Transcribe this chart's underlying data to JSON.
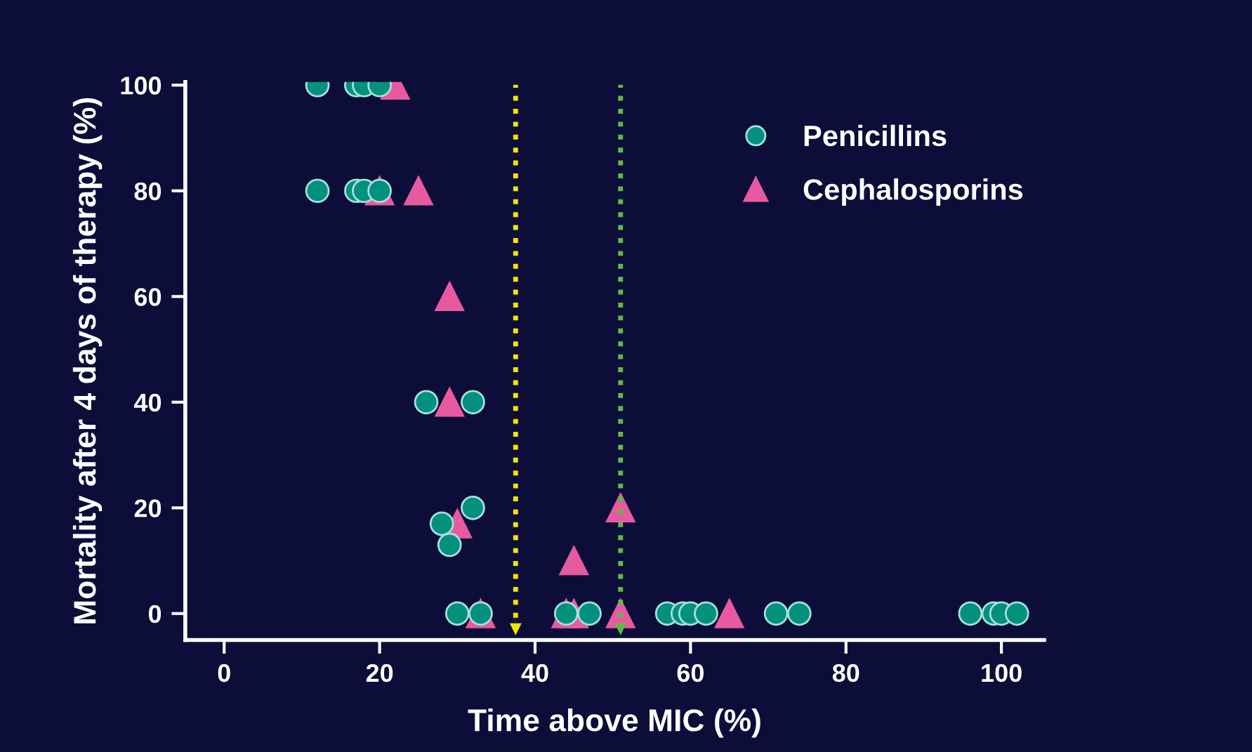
{
  "chart_data": {
    "type": "scatter",
    "xlabel": "Time above MIC (%)",
    "ylabel": "Mortality after 4 days of therapy (%)",
    "xlim": [
      -5,
      105.5
    ],
    "xticks": [
      0,
      20,
      40,
      60,
      80,
      100
    ],
    "ylim": [
      -5,
      100.6
    ],
    "yticks": [
      0,
      20,
      40,
      60,
      80,
      100
    ],
    "grid": false,
    "legend": "top right",
    "series": [
      {
        "name": "Penicillins",
        "color": "#03907f",
        "marker": "circle",
        "x": [
          12,
          17,
          18,
          20,
          12,
          17,
          18,
          20,
          26,
          32,
          32,
          28,
          29,
          30,
          33,
          44,
          47,
          57,
          59,
          60,
          62,
          71,
          74,
          96,
          99,
          100,
          102
        ],
        "values": [
          100,
          100,
          100,
          100,
          80,
          80,
          80,
          80,
          40,
          40,
          20,
          17,
          13,
          0,
          0,
          0,
          0,
          0,
          0,
          0,
          0,
          0,
          0,
          0,
          0,
          0,
          0
        ]
      },
      {
        "name": "Cephalosporins",
        "color": "#e85aa0",
        "marker": "triangle",
        "x": [
          22,
          20,
          25,
          29,
          29,
          30,
          51,
          45,
          33,
          44,
          45,
          51,
          65
        ],
        "values": [
          100,
          80,
          80,
          60,
          40,
          17,
          20,
          10,
          0,
          0,
          0,
          0,
          0
        ]
      }
    ],
    "ref_lines": [
      {
        "axis": "x",
        "value": 37.5,
        "color": "#f2e600",
        "line_style": "dotted"
      },
      {
        "axis": "x",
        "value": 51,
        "color": "#5fba45",
        "line_style": "dotted"
      }
    ]
  }
}
